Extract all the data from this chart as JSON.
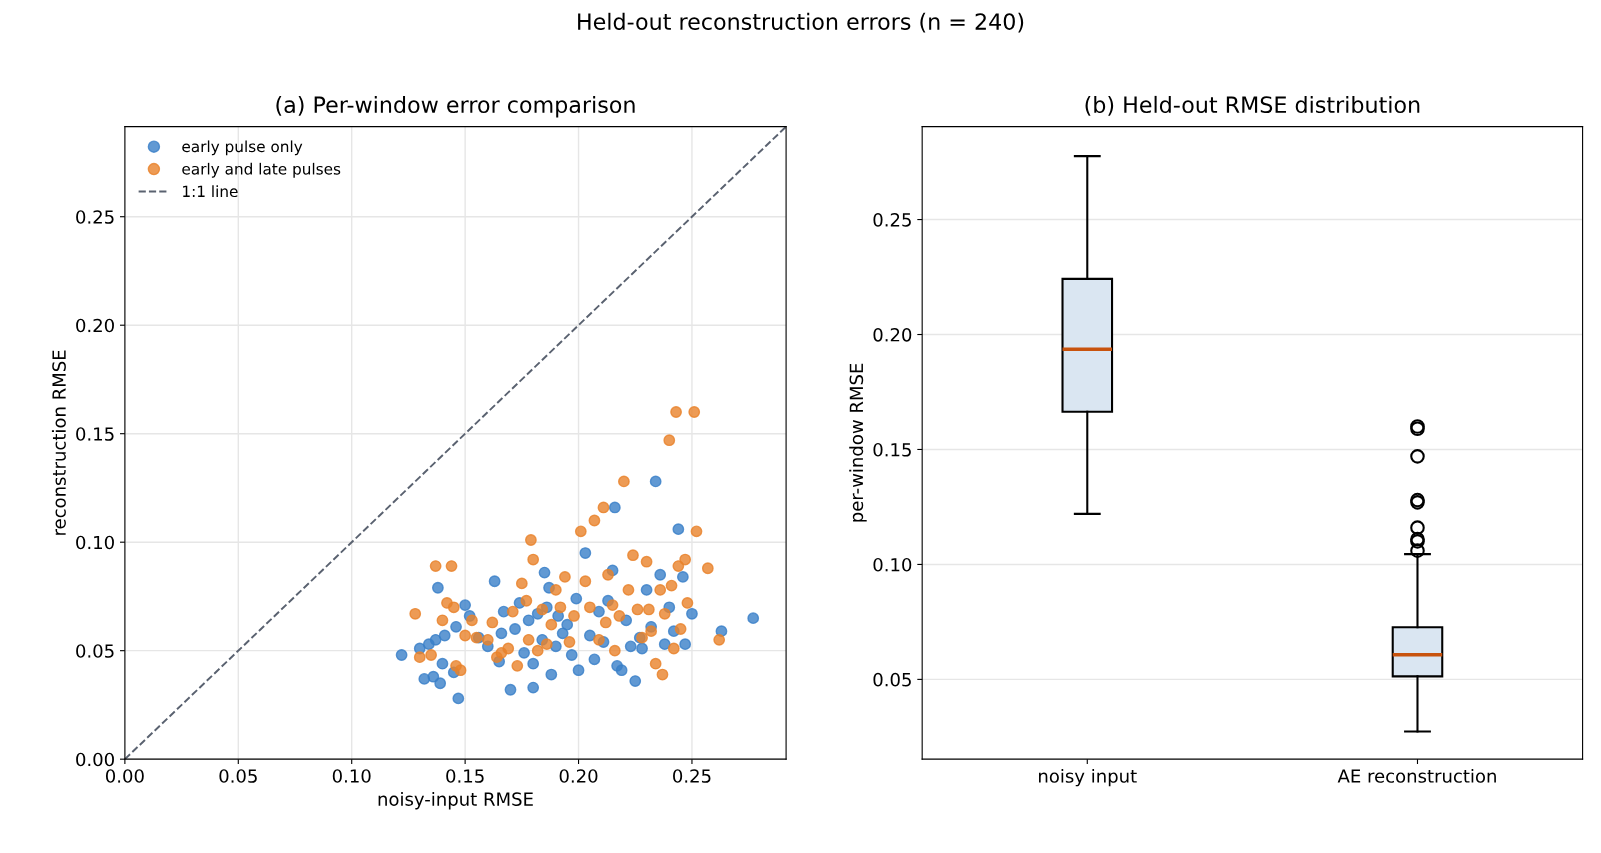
{
  "chart_data": [
    {
      "type": "scatter",
      "title": "(a) Per-window error comparison",
      "annotations": [
        "Held-out reconstruction errors (n = 240)"
      ],
      "xlabel": "noisy-input RMSE",
      "ylabel": "reconstruction RMSE",
      "xlim": [
        0,
        0.2915
      ],
      "ylim": [
        0,
        0.2915
      ],
      "xticks": [
        {
          "value": 0,
          "label": "0.00"
        },
        {
          "value": 0.05,
          "label": "0.05"
        },
        {
          "value": 0.1,
          "label": "0.10"
        },
        {
          "value": 0.15,
          "label": "0.15"
        },
        {
          "value": 0.2,
          "label": "0.20"
        },
        {
          "value": 0.25,
          "label": "0.25"
        }
      ],
      "yticks": [
        {
          "value": 0,
          "label": "0.00"
        },
        {
          "value": 0.05,
          "label": "0.05"
        },
        {
          "value": 0.1,
          "label": "0.10"
        },
        {
          "value": 0.15,
          "label": "0.15"
        },
        {
          "value": 0.2,
          "label": "0.20"
        },
        {
          "value": 0.25,
          "label": "0.25"
        }
      ],
      "grid": true,
      "legend": "top left",
      "marker": "circle",
      "series": [
        {
          "name": "early pulse only",
          "color": "#3a7fc8",
          "x": [
            0.122,
            0.13,
            0.132,
            0.134,
            0.136,
            0.137,
            0.138,
            0.139,
            0.14,
            0.141,
            0.145,
            0.147,
            0.146,
            0.15,
            0.152,
            0.156,
            0.16,
            0.163,
            0.165,
            0.166,
            0.167,
            0.17,
            0.172,
            0.174,
            0.176,
            0.178,
            0.18,
            0.18,
            0.182,
            0.184,
            0.185,
            0.186,
            0.187,
            0.188,
            0.19,
            0.191,
            0.193,
            0.195,
            0.197,
            0.199,
            0.2,
            0.203,
            0.205,
            0.207,
            0.209,
            0.211,
            0.213,
            0.215,
            0.216,
            0.217,
            0.219,
            0.221,
            0.223,
            0.225,
            0.227,
            0.228,
            0.23,
            0.232,
            0.234,
            0.236,
            0.238,
            0.24,
            0.242,
            0.244,
            0.246,
            0.247,
            0.25,
            0.263,
            0.277
          ],
          "values": [
            0.048,
            0.051,
            0.037,
            0.053,
            0.038,
            0.055,
            0.079,
            0.035,
            0.044,
            0.057,
            0.04,
            0.028,
            0.061,
            0.071,
            0.066,
            0.056,
            0.052,
            0.082,
            0.045,
            0.058,
            0.068,
            0.032,
            0.06,
            0.072,
            0.049,
            0.064,
            0.044,
            0.033,
            0.067,
            0.055,
            0.086,
            0.07,
            0.079,
            0.039,
            0.052,
            0.066,
            0.058,
            0.062,
            0.048,
            0.074,
            0.041,
            0.095,
            0.057,
            0.046,
            0.068,
            0.054,
            0.073,
            0.087,
            0.116,
            0.043,
            0.041,
            0.064,
            0.052,
            0.036,
            0.056,
            0.051,
            0.078,
            0.061,
            0.128,
            0.085,
            0.053,
            0.07,
            0.059,
            0.106,
            0.084,
            0.053,
            0.067,
            0.059,
            0.065
          ]
        },
        {
          "name": "early and late pulses",
          "color": "#e8822a",
          "x": [
            0.128,
            0.13,
            0.135,
            0.137,
            0.14,
            0.142,
            0.144,
            0.145,
            0.146,
            0.148,
            0.15,
            0.153,
            0.155,
            0.16,
            0.162,
            0.164,
            0.166,
            0.169,
            0.171,
            0.173,
            0.175,
            0.177,
            0.178,
            0.179,
            0.18,
            0.182,
            0.184,
            0.186,
            0.188,
            0.19,
            0.192,
            0.194,
            0.196,
            0.198,
            0.201,
            0.203,
            0.205,
            0.207,
            0.209,
            0.211,
            0.212,
            0.213,
            0.215,
            0.216,
            0.218,
            0.22,
            0.222,
            0.224,
            0.226,
            0.228,
            0.23,
            0.231,
            0.232,
            0.234,
            0.236,
            0.237,
            0.238,
            0.24,
            0.241,
            0.242,
            0.243,
            0.244,
            0.245,
            0.247,
            0.248,
            0.251,
            0.252,
            0.257,
            0.262
          ],
          "values": [
            0.067,
            0.047,
            0.048,
            0.089,
            0.064,
            0.072,
            0.089,
            0.07,
            0.043,
            0.041,
            0.057,
            0.064,
            0.056,
            0.055,
            0.063,
            0.047,
            0.049,
            0.051,
            0.068,
            0.043,
            0.081,
            0.073,
            0.055,
            0.101,
            0.092,
            0.05,
            0.069,
            0.053,
            0.062,
            0.078,
            0.07,
            0.084,
            0.054,
            0.066,
            0.105,
            0.082,
            0.07,
            0.11,
            0.055,
            0.116,
            0.063,
            0.085,
            0.071,
            0.05,
            0.066,
            0.128,
            0.078,
            0.094,
            0.069,
            0.056,
            0.091,
            0.069,
            0.059,
            0.044,
            0.078,
            0.039,
            0.067,
            0.147,
            0.08,
            0.051,
            0.16,
            0.089,
            0.06,
            0.092,
            0.072,
            0.16,
            0.105,
            0.088,
            0.055
          ]
        },
        {
          "name": "1:1 line",
          "type": "line",
          "color": "#5a6270",
          "line_style": "dashed",
          "marker": "none",
          "x": [
            0,
            0.2915
          ],
          "values": [
            0,
            0.2915
          ]
        }
      ]
    },
    {
      "type": "box",
      "title": "(b) Held-out RMSE distribution",
      "ylabel": "per-window RMSE",
      "categories": [
        "noisy input",
        "AE reconstruction"
      ],
      "ylim": [
        0.0153,
        0.2904
      ],
      "yticks": [
        0.05,
        {
          "value": 0.1,
          "label": "0.10"
        },
        0.15,
        {
          "value": 0.2,
          "label": "0.20"
        },
        0.25
      ],
      "grid": "y",
      "series": [
        {
          "color": "#dae6f2",
          "boxes": [
            {
              "low": 0.122,
              "q1": 0.1664,
              "median": 0.1936,
              "q3": 0.2242,
              "high": 0.2776
            },
            {
              "low": 0.0273,
              "q1": 0.0513,
              "median": 0.0607,
              "q3": 0.0727,
              "high": 0.1045,
              "outliers": [
                0.16,
                0.159,
                0.147,
                0.128,
                0.127,
                0.116,
                0.111,
                0.11,
                0.106
              ]
            }
          ]
        }
      ]
    }
  ]
}
